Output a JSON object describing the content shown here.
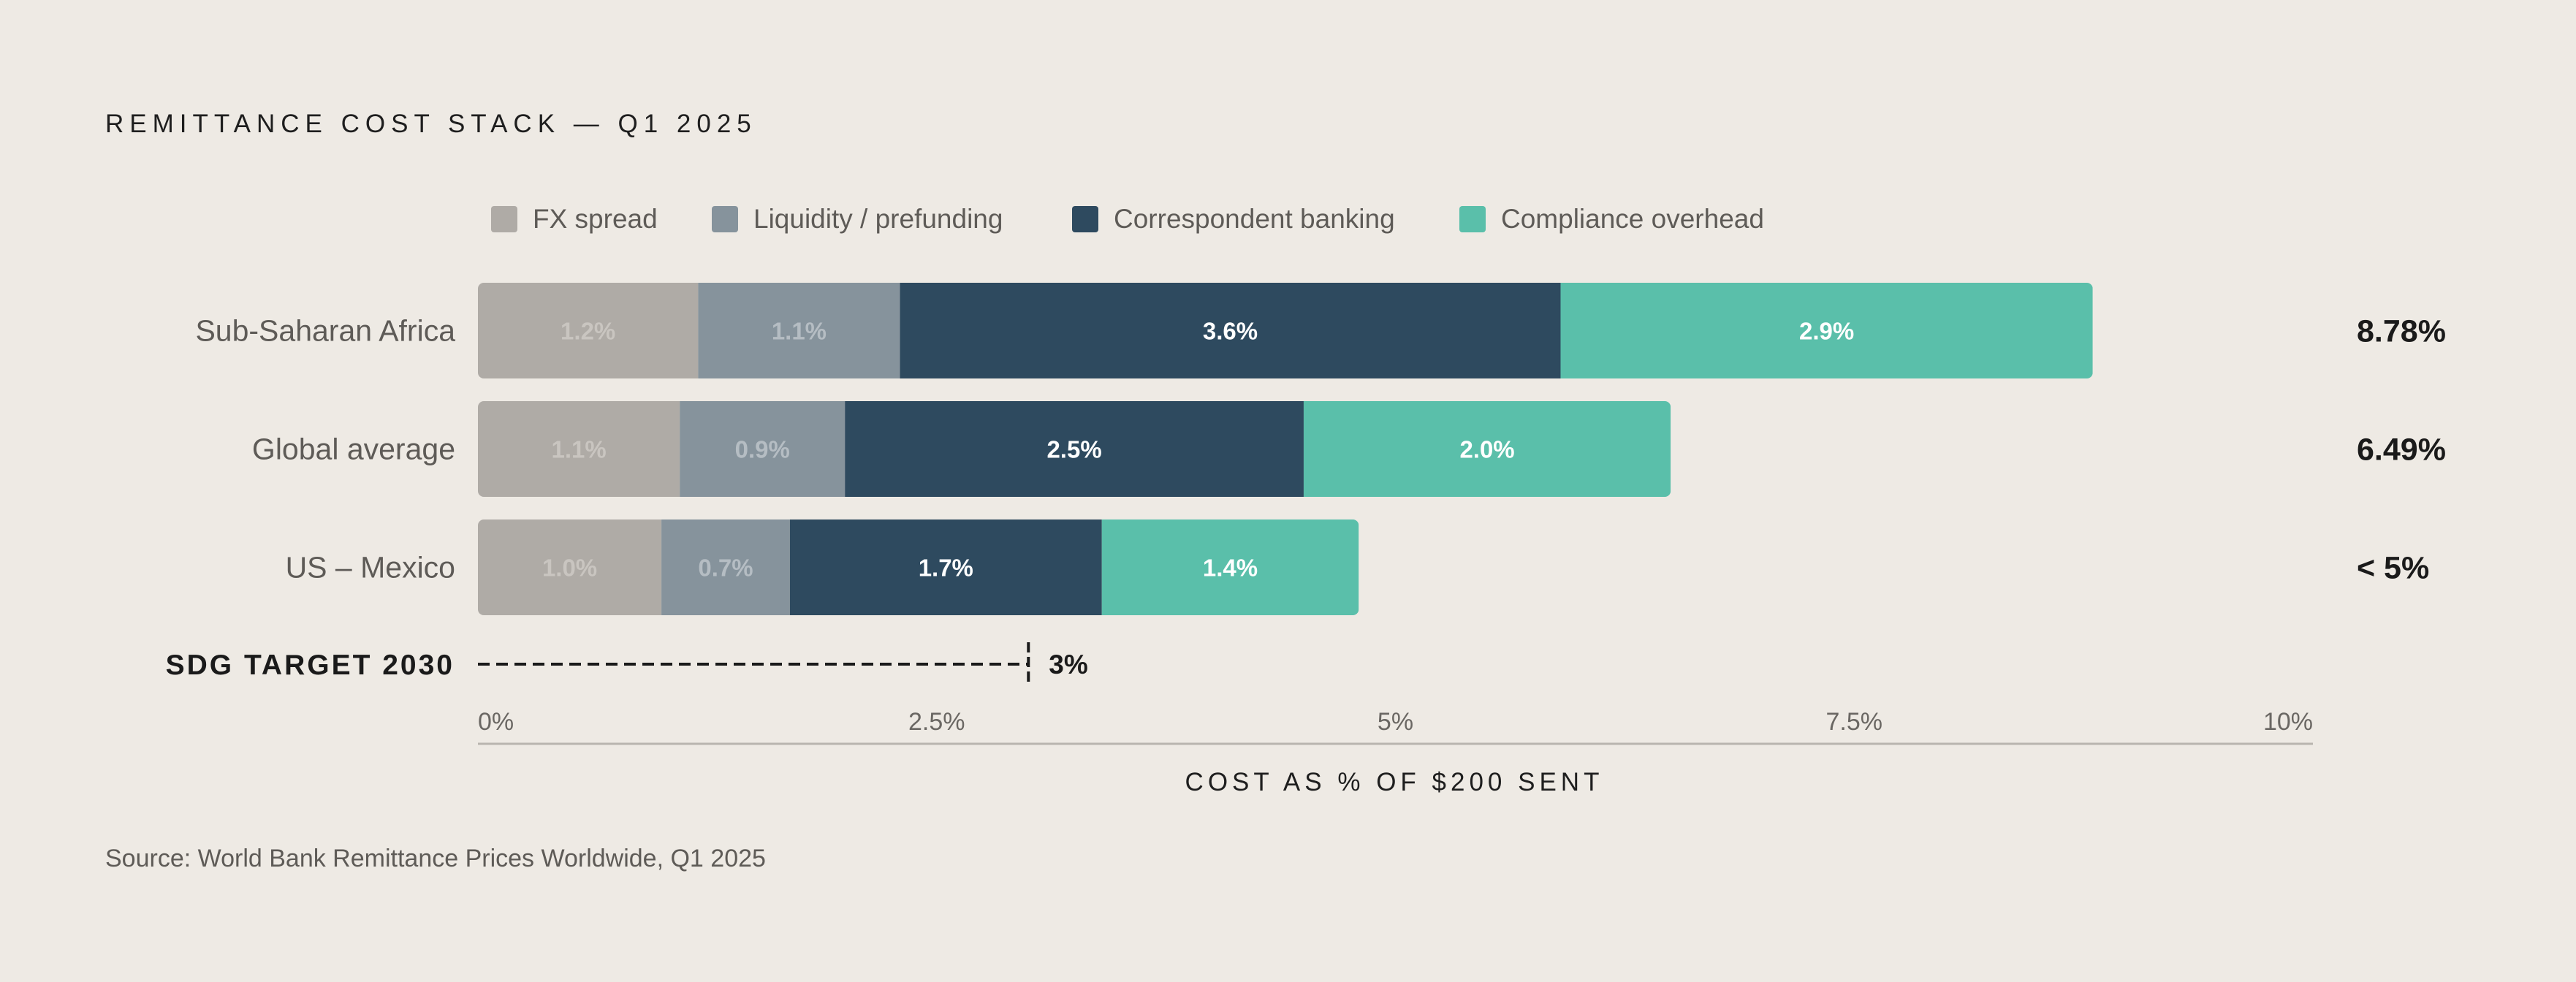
{
  "chart_data": {
    "type": "bar",
    "orientation": "horizontal",
    "stacked": true,
    "title": "REMITTANCE COST STACK — Q1 2025",
    "categories": [
      "Sub-Saharan Africa",
      "Global average",
      "US – Mexico"
    ],
    "series": [
      {
        "name": "FX spread",
        "color": "#AFABA6",
        "label_color": "#C9C5C0",
        "values": [
          1.2,
          1.1,
          1.0
        ],
        "labels": [
          "1.2%",
          "1.1%",
          "1.0%"
        ]
      },
      {
        "name": "Liquidity / prefunding",
        "color": "#86939C",
        "label_color": "#B5BDC3",
        "values": [
          1.1,
          0.9,
          0.7
        ],
        "labels": [
          "1.1%",
          "0.9%",
          "0.7%"
        ]
      },
      {
        "name": "Correspondent banking",
        "color": "#2E4A5F",
        "label_color": "#FFFFFF",
        "values": [
          3.6,
          2.5,
          1.7
        ],
        "labels": [
          "3.6%",
          "2.5%",
          "1.7%"
        ]
      },
      {
        "name": "Compliance overhead",
        "color": "#5ABFAA",
        "label_color": "#FFFFFF",
        "values": [
          2.9,
          2.0,
          1.4
        ],
        "labels": [
          "2.9%",
          "2.0%",
          "1.4%"
        ]
      }
    ],
    "totals": [
      "8.78%",
      "6.49%",
      "< 5%"
    ],
    "target": {
      "label": "SDG TARGET 2030",
      "value": 3,
      "value_label": "3%"
    },
    "xlim": [
      0,
      10
    ],
    "xticks": [
      {
        "value": 0,
        "label": "0%"
      },
      {
        "value": 2.5,
        "label": "2.5%"
      },
      {
        "value": 5,
        "label": "5%"
      },
      {
        "value": 7.5,
        "label": "7.5%"
      },
      {
        "value": 10,
        "label": "10%"
      }
    ],
    "xlabel": "COST AS % OF $200 SENT",
    "legend_position": "top",
    "grid": false,
    "source": "Source: World Bank Remittance Prices Worldwide, Q1 2025"
  }
}
